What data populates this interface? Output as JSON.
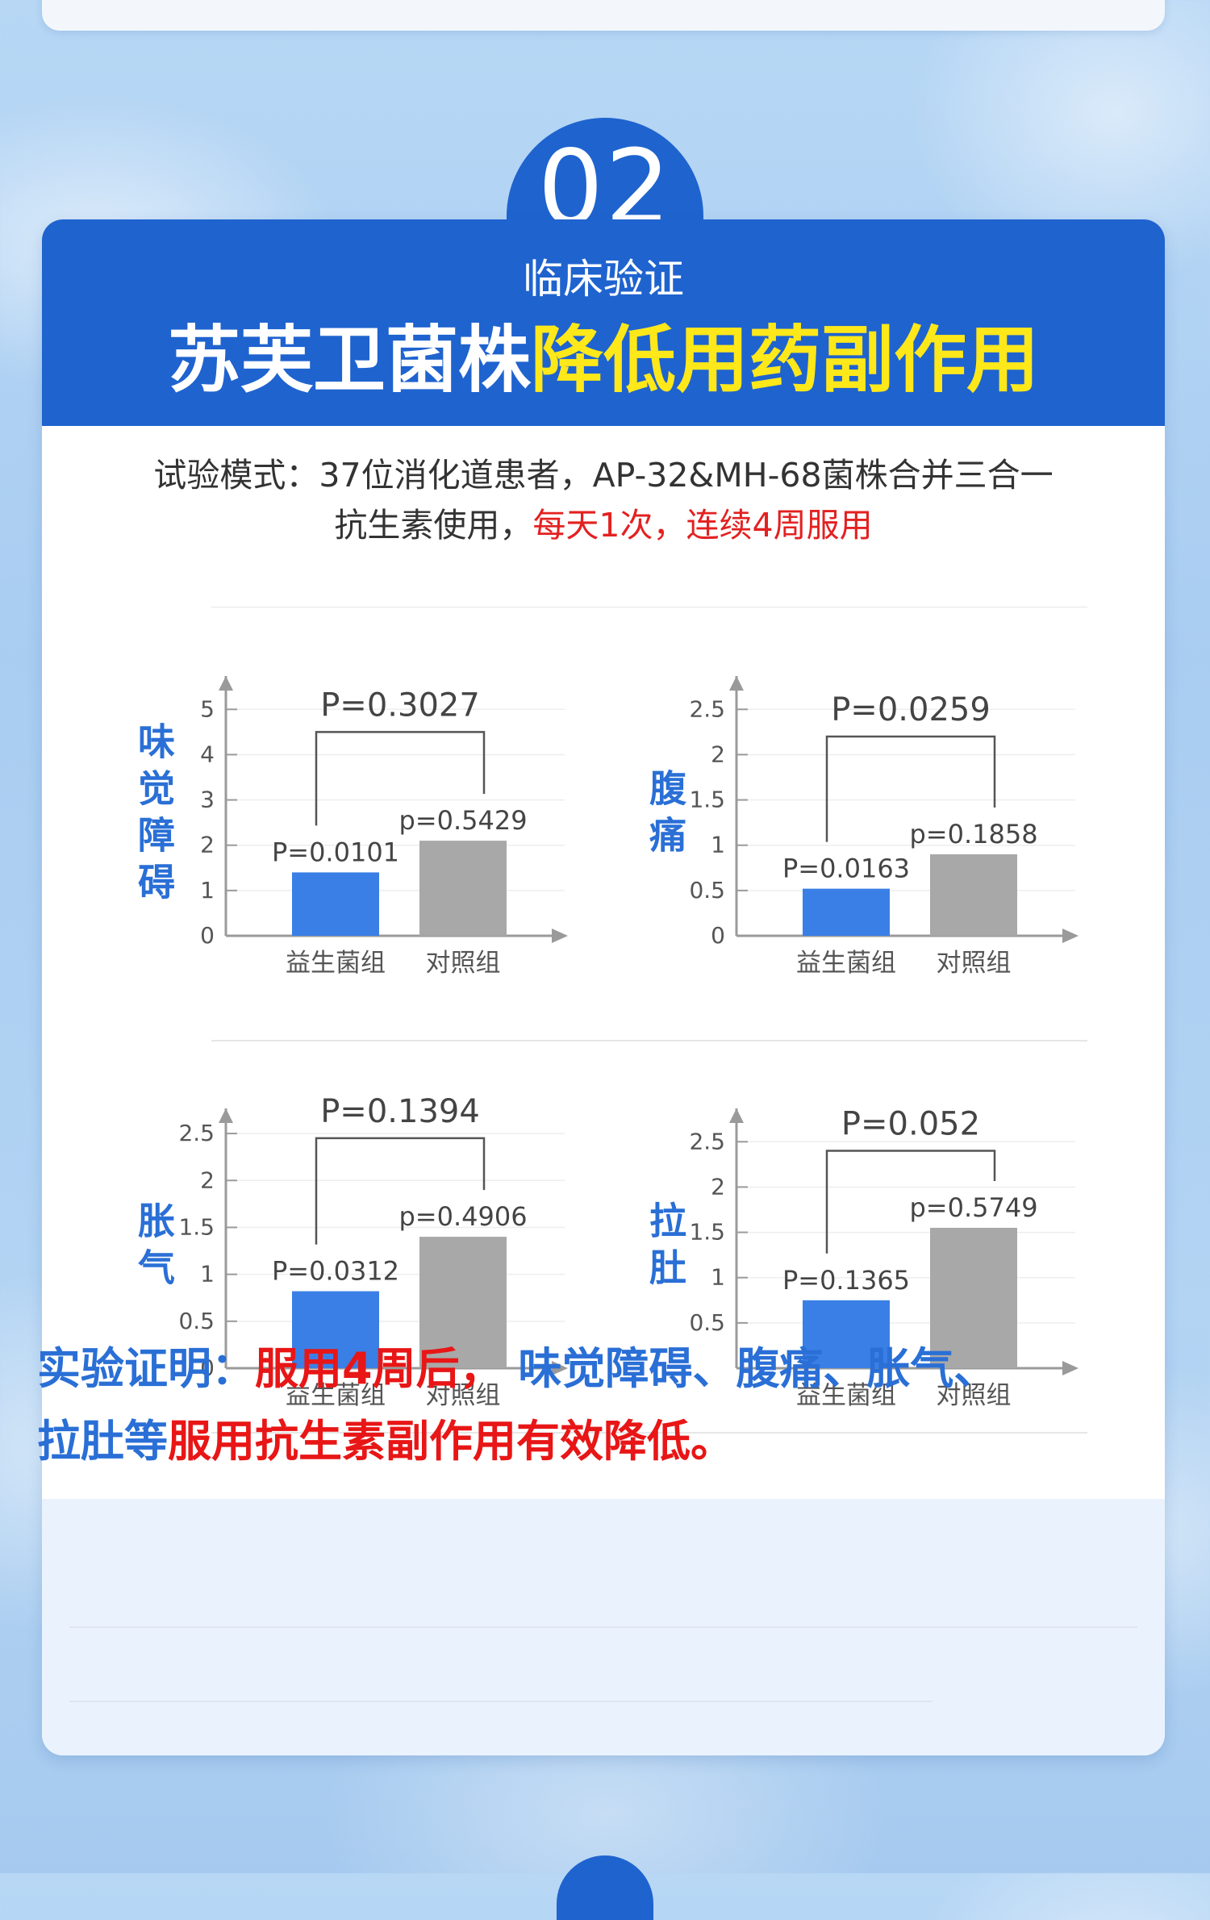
{
  "badge": {
    "number": "02"
  },
  "header": {
    "subtitle": "临床验证",
    "headline_white": "苏芙卫菌株",
    "headline_yellow": "降低用药副作用"
  },
  "trial": {
    "line1": "试验模式：37位消化道患者，AP-32&MH-68菌株合并三合一",
    "line2_black": "抗生素使用，",
    "line2_red": "每天1次，连续4周服用"
  },
  "colors": {
    "probiotic": "#3a7fe6",
    "control": "#a8a8a8",
    "label_blue": "#2a6fd6",
    "header_blue": "#1f63cf",
    "highlight_yellow": "#ffe81a",
    "highlight_red": "#e32121"
  },
  "chart_data": [
    {
      "type": "bar",
      "ylabel": "味觉障碍",
      "categories": [
        "益生菌组",
        "对照组"
      ],
      "values": [
        1.4,
        2.1
      ],
      "ylim": [
        0,
        5.7
      ],
      "yticks": [
        "0",
        "1",
        "2",
        "3",
        "4",
        "5"
      ],
      "ytick_values": [
        0,
        1,
        2,
        3,
        4,
        5
      ],
      "bar_labels": [
        "P=0.0101",
        "p=0.5429"
      ],
      "comparison_label": "P=0.3027",
      "bracket_y": 4.5
    },
    {
      "type": "bar",
      "ylabel": "腹痛",
      "categories": [
        "益生菌组",
        "对照组"
      ],
      "values": [
        0.52,
        0.9
      ],
      "ylim": [
        0,
        2.85
      ],
      "yticks": [
        "0",
        "0.5",
        "1",
        "1.5",
        "2",
        "2.5"
      ],
      "ytick_values": [
        0,
        0.5,
        1,
        1.5,
        2,
        2.5
      ],
      "bar_labels": [
        "P=0.0163",
        "p=0.1858"
      ],
      "comparison_label": "P=0.0259",
      "bracket_y": 2.2
    },
    {
      "type": "bar",
      "ylabel": "胀气",
      "categories": [
        "益生菌组",
        "对照组"
      ],
      "values": [
        0.82,
        1.4
      ],
      "ylim": [
        0,
        2.75
      ],
      "yticks": [
        "0",
        "0.5",
        "1",
        "1.5",
        "2",
        "2.5"
      ],
      "ytick_values": [
        0,
        0.5,
        1,
        1.5,
        2,
        2.5
      ],
      "bar_labels": [
        "P=0.0312",
        "p=0.4906"
      ],
      "comparison_label": "P=0.1394",
      "bracket_y": 2.45
    },
    {
      "type": "bar",
      "ylabel": "拉肚",
      "categories": [
        "益生菌组",
        "对照组"
      ],
      "values": [
        0.75,
        1.55
      ],
      "ylim": [
        0,
        2.85
      ],
      "yticks": [
        "0.5",
        "1",
        "1.5",
        "2",
        "2.5"
      ],
      "ytick_values": [
        0.5,
        1,
        1.5,
        2,
        2.5
      ],
      "bar_labels": [
        "P=0.1365",
        "p=0.5749"
      ],
      "comparison_label": "P=0.052",
      "bracket_y": 2.4
    }
  ],
  "conclusion": {
    "l1_blue_a": "实验证明：",
    "l1_red": "服用4周后，",
    "l1_blue_b": " 味觉障碍、腹痛、胀气、",
    "l2_blue": "拉肚等",
    "l2_red": "服用抗生素副作用有效降低。"
  }
}
